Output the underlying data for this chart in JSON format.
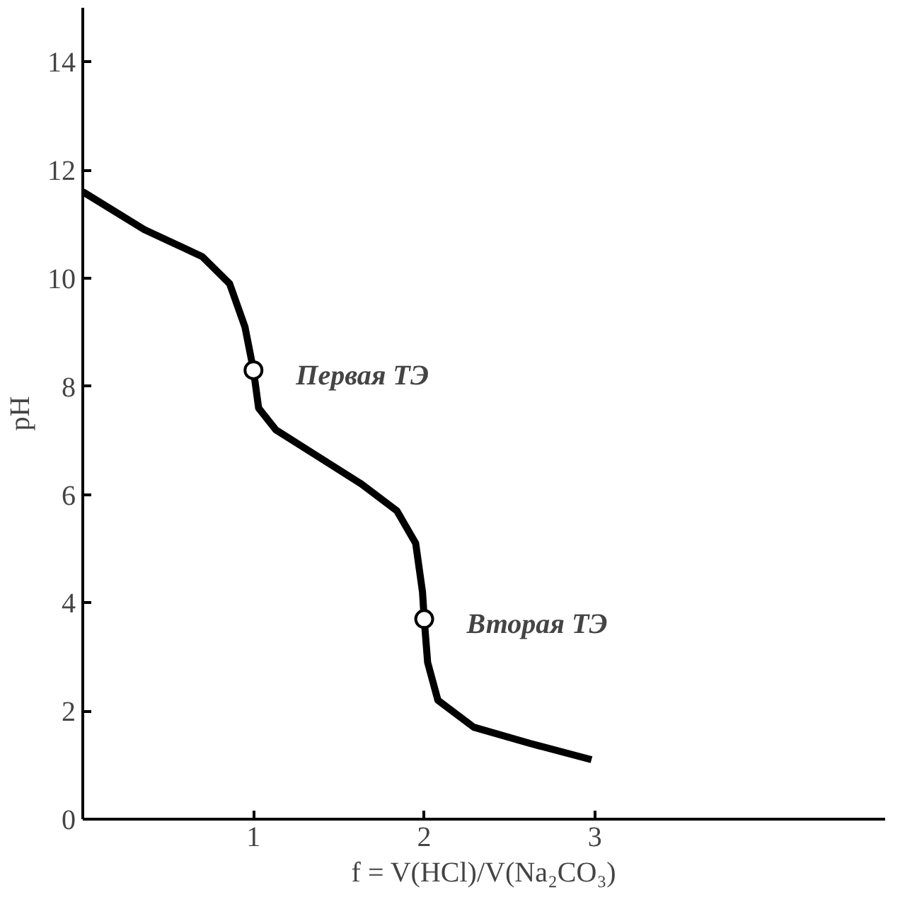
{
  "chart_data": {
    "type": "line",
    "xlabel": "f = V(HCl)/V(Na₂CO₃)",
    "ylabel": "pH",
    "xlim": [
      0,
      4.7
    ],
    "ylim": [
      0,
      15
    ],
    "xticks": [
      1,
      2,
      3
    ],
    "yticks": [
      0,
      2,
      4,
      6,
      8,
      10,
      12,
      14
    ],
    "grid": false,
    "series": [
      {
        "color": "#000000",
        "line_style": "solid",
        "marker": "none",
        "x": [
          0,
          0.36,
          0.7,
          0.86,
          0.95,
          1.0,
          1.03,
          1.13,
          1.38,
          1.63,
          1.84,
          1.95,
          1.99,
          2.0,
          2.02,
          2.08,
          2.29,
          2.62,
          2.98
        ],
        "values": [
          11.6,
          10.9,
          10.4,
          9.9,
          9.1,
          8.3,
          7.6,
          7.2,
          6.7,
          6.2,
          5.7,
          5.1,
          4.2,
          3.7,
          2.9,
          2.2,
          1.7,
          1.4,
          1.1
        ]
      },
      {
        "type": "scatter",
        "color": "#ffffff",
        "marker": "circle",
        "x": [
          1,
          2
        ],
        "values": [
          8.3,
          3.7
        ]
      }
    ],
    "annotations": [
      {
        "text": "Первая  ТЭ",
        "x": 1,
        "y": 8.3
      },
      {
        "text": "Вторая  ТЭ",
        "x": 2,
        "y": 3.7
      }
    ]
  }
}
